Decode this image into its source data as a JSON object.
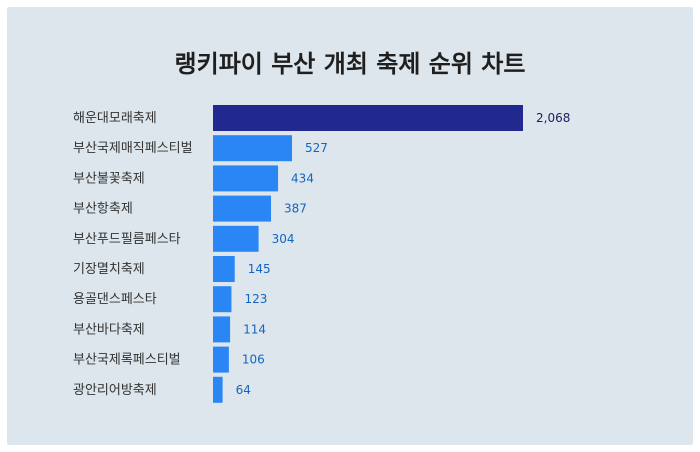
{
  "title": "랭키파이 부산 개최 축제 순위 차트",
  "colors": {
    "background": "#dce6ec",
    "bar": "#2b86f5",
    "bar_top": "#21298f",
    "value_label": "#1565c0",
    "value_label_top": "#1a1f5c"
  },
  "chart_data": {
    "type": "bar",
    "orientation": "horizontal",
    "title": "랭키파이 부산 개최 축제 순위 차트",
    "categories": [
      "해운대모래축제",
      "부산국제매직페스티벌",
      "부산불꽃축제",
      "부산항축제",
      "부산푸드필름페스타",
      "기장멸치축제",
      "용골댄스페스타",
      "부산바다축제",
      "부산국제록페스티벌",
      "광안리어방축제"
    ],
    "values": [
      2068,
      527,
      434,
      387,
      304,
      145,
      123,
      114,
      106,
      64
    ],
    "value_labels": [
      "2,068",
      "527",
      "434",
      "387",
      "304",
      "145",
      "123",
      "114",
      "106",
      "64"
    ],
    "xlim": [
      0,
      2068
    ],
    "grid": false,
    "legend": false
  }
}
